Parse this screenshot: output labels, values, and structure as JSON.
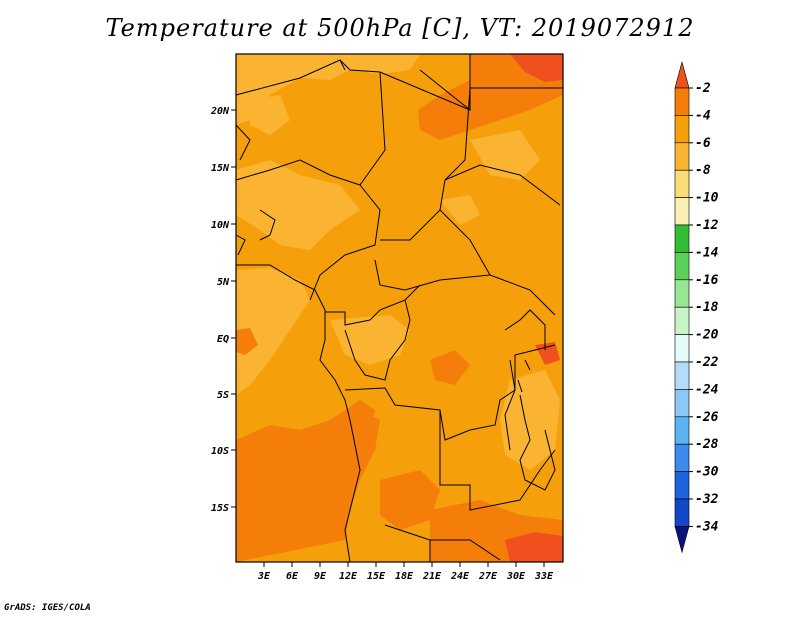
{
  "title": "Temperature at 500hPa [C], VT: 2019072912",
  "credit": "GrADS: IGES/COLA",
  "map": {
    "y_ticks": [
      "20N",
      "15N",
      "10N",
      "5N",
      "EQ",
      "5S",
      "10S",
      "15S"
    ],
    "x_ticks": [
      "3E",
      "6E",
      "9E",
      "12E",
      "15E",
      "18E",
      "21E",
      "24E",
      "27E",
      "30E",
      "33E"
    ]
  },
  "legend": {
    "labels": [
      "-2",
      "-4",
      "-6",
      "-8",
      "-10",
      "-12",
      "-14",
      "-16",
      "-18",
      "-20",
      "-22",
      "-24",
      "-26",
      "-28",
      "-30",
      "-32",
      "-34"
    ],
    "colors": [
      "#f0501e",
      "#f57d0a",
      "#f5a00a",
      "#fab432",
      "#fadc78",
      "#faf0b4",
      "#32be32",
      "#5ad25a",
      "#96e696",
      "#c8f5c8",
      "#e6fafa",
      "#b4dcfa",
      "#8cc8f5",
      "#5ab4f0",
      "#3c8cf0",
      "#1e64dc",
      "#1446c8",
      "#0a1478"
    ],
    "color_names": [
      "lt-red",
      "dk-orange",
      "orange",
      "lt-orange",
      "yellow",
      "pale-yellow",
      "green",
      "med-green",
      "lt-green",
      "pale-green",
      "pale-cyan",
      "lt-blue",
      "sky-blue",
      "blue",
      "med-blue",
      "dk-blue",
      "darker-blue",
      "navy"
    ]
  }
}
